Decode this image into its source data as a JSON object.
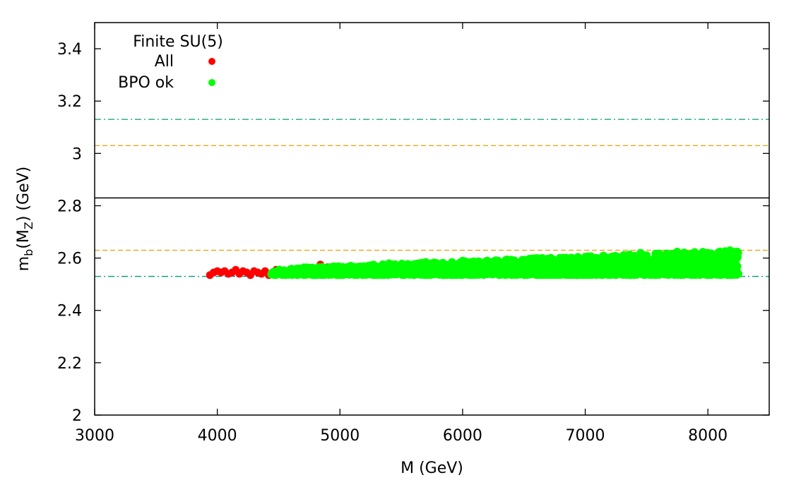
{
  "chart_data": {
    "type": "scatter",
    "title": "",
    "xlabel": "M (GeV)",
    "ylabel": {
      "main": "m",
      "sub": "b",
      "paren_open": "(M",
      "paren_sub": "Z",
      "rest": ") (GeV)"
    },
    "xlim": [
      3000,
      8500
    ],
    "ylim": [
      2.0,
      3.5
    ],
    "x_ticks": [
      3000,
      4000,
      5000,
      6000,
      7000,
      8000
    ],
    "x_tick_labels": [
      "3000",
      "4000",
      "5000",
      "6000",
      "7000",
      "8000"
    ],
    "y_ticks": [
      2.0,
      2.2,
      2.4,
      2.6,
      2.8,
      3.0,
      3.2,
      3.4
    ],
    "y_tick_labels": [
      "2",
      "2.2",
      "2.4",
      "2.6",
      "2.8",
      "3",
      "3.2",
      "3.4"
    ],
    "grid": false,
    "legend": {
      "title": "Finite SU(5)",
      "placement": "top-left",
      "entries": [
        {
          "label": "All",
          "color": "#ff0000"
        },
        {
          "label": "BPO ok",
          "color": "#00ff00"
        }
      ]
    },
    "reference_lines": [
      {
        "y": 2.83,
        "style": "solid",
        "color": "#000000"
      },
      {
        "y": 3.13,
        "style": "dash-dot",
        "color": "#009e73"
      },
      {
        "y": 3.03,
        "style": "dashed",
        "color": "#e69f00"
      },
      {
        "y": 2.63,
        "style": "dashed",
        "color": "#e69f00"
      },
      {
        "y": 2.53,
        "style": "dash-dot",
        "color": "#009e73"
      }
    ],
    "series": [
      {
        "name": "All",
        "color": "#ff0000",
        "points": [
          [
            3940,
            2.535
          ],
          [
            3970,
            2.545
          ],
          [
            4000,
            2.55
          ],
          [
            4030,
            2.545
          ],
          [
            4060,
            2.55
          ],
          [
            4090,
            2.54
          ],
          [
            4120,
            2.545
          ],
          [
            4150,
            2.555
          ],
          [
            4180,
            2.54
          ],
          [
            4210,
            2.55
          ],
          [
            4240,
            2.545
          ],
          [
            4270,
            2.535
          ],
          [
            4300,
            2.55
          ],
          [
            4330,
            2.545
          ],
          [
            4360,
            2.54
          ],
          [
            4390,
            2.55
          ],
          [
            4420,
            2.535
          ],
          [
            4450,
            2.545
          ],
          [
            4480,
            2.555
          ],
          [
            4510,
            2.54
          ],
          [
            4540,
            2.55
          ],
          [
            4570,
            2.545
          ],
          [
            4600,
            2.555
          ],
          [
            4630,
            2.545
          ],
          [
            4660,
            2.56
          ],
          [
            4690,
            2.545
          ],
          [
            4720,
            2.555
          ],
          [
            4750,
            2.55
          ],
          [
            4780,
            2.56
          ],
          [
            4810,
            2.545
          ],
          [
            4840,
            2.575
          ],
          [
            4870,
            2.55
          ],
          [
            4900,
            2.565
          ],
          [
            4930,
            2.55
          ],
          [
            4960,
            2.555
          ]
        ]
      },
      {
        "name": "BPO ok",
        "color": "#00ff00",
        "x_range": [
          4440,
          8250
        ],
        "y_range_start": [
          2.535,
          2.56
        ],
        "y_range_end": [
          2.535,
          2.63
        ],
        "points": [
          [
            4440,
            2.537
          ],
          [
            4550,
            2.54
          ],
          [
            4700,
            2.545
          ],
          [
            4900,
            2.55
          ],
          [
            5100,
            2.56
          ],
          [
            5400,
            2.58
          ],
          [
            5700,
            2.585
          ],
          [
            6000,
            2.59
          ],
          [
            6600,
            2.6
          ],
          [
            7000,
            2.605
          ],
          [
            7450,
            2.62
          ],
          [
            7750,
            2.625
          ],
          [
            8000,
            2.62
          ],
          [
            8180,
            2.63
          ],
          [
            8240,
            2.625
          ]
        ]
      }
    ]
  }
}
